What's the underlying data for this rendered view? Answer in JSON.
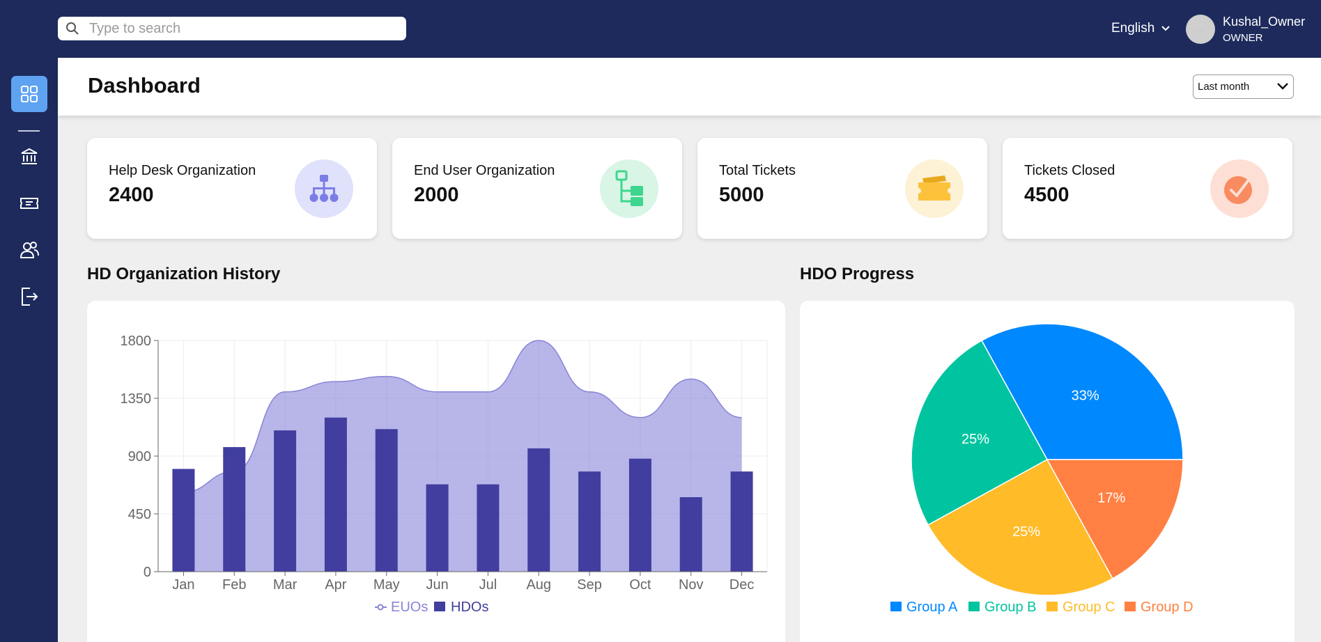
{
  "search": {
    "placeholder": "Type to search"
  },
  "user": {
    "language": "English",
    "avatar_text": "...",
    "name": "Kushal_Owner",
    "role": "OWNER"
  },
  "header": {
    "title": "Dashboard",
    "period": "Last month"
  },
  "sidebar": {
    "items": [
      {
        "icon": "dashboard-grid-icon",
        "active": true
      },
      {
        "icon": "institution-icon"
      },
      {
        "icon": "ticket-icon"
      },
      {
        "icon": "users-icon"
      },
      {
        "icon": "logout-icon"
      }
    ]
  },
  "stats": [
    {
      "label": "Help Desk Organization",
      "value": "2400",
      "icon": "org-chart-icon",
      "icon_bg": "#e0e1fb",
      "icon_color": "#7b7de6"
    },
    {
      "label": "End User Organization",
      "value": "2000",
      "icon": "tree-icon",
      "icon_bg": "#d8f5e6",
      "icon_color": "#3ed68e"
    },
    {
      "label": "Total Tickets",
      "value": "5000",
      "icon": "ticket-icon",
      "icon_bg": "#fdf1d6",
      "icon_color": "#fcc23c"
    },
    {
      "label": "Tickets Closed",
      "value": "4500",
      "icon": "check-circle-icon",
      "icon_bg": "#fddfd5",
      "icon_color": "#f98b60"
    }
  ],
  "sections": {
    "history_title": "HD Organization History",
    "progress_title": "HDO Progress"
  },
  "chart_data": [
    {
      "type": "bar+area",
      "title": "HD Organization History",
      "categories": [
        "Jan",
        "Feb",
        "Mar",
        "Apr",
        "May",
        "Jun",
        "Jul",
        "Aug",
        "Sep",
        "Oct",
        "Nov",
        "Dec"
      ],
      "series": [
        {
          "name": "EUOs",
          "type": "area",
          "color": "#8884d8",
          "values": [
            620,
            780,
            1400,
            1480,
            1520,
            1400,
            1400,
            1800,
            1400,
            1200,
            1500,
            1200
          ]
        },
        {
          "name": "HDOs",
          "type": "bar",
          "color": "#413ea0",
          "values": [
            800,
            970,
            1100,
            1200,
            1110,
            680,
            680,
            960,
            780,
            880,
            580,
            780
          ]
        }
      ],
      "yticks": [
        0,
        450,
        900,
        1350,
        1800
      ],
      "ylim": [
        0,
        1800
      ],
      "grid": true,
      "legend": "bottom"
    },
    {
      "type": "pie",
      "title": "HDO Progress",
      "slices": [
        {
          "name": "Group A",
          "value": 33,
          "label": "33%",
          "color": "#0088fe"
        },
        {
          "name": "Group B",
          "value": 25,
          "label": "25%",
          "color": "#00c49f"
        },
        {
          "name": "Group C",
          "value": 25,
          "label": "25%",
          "color": "#ffbb28"
        },
        {
          "name": "Group D",
          "value": 17,
          "label": "17%",
          "color": "#ff8042"
        }
      ],
      "legend": "bottom"
    }
  ]
}
